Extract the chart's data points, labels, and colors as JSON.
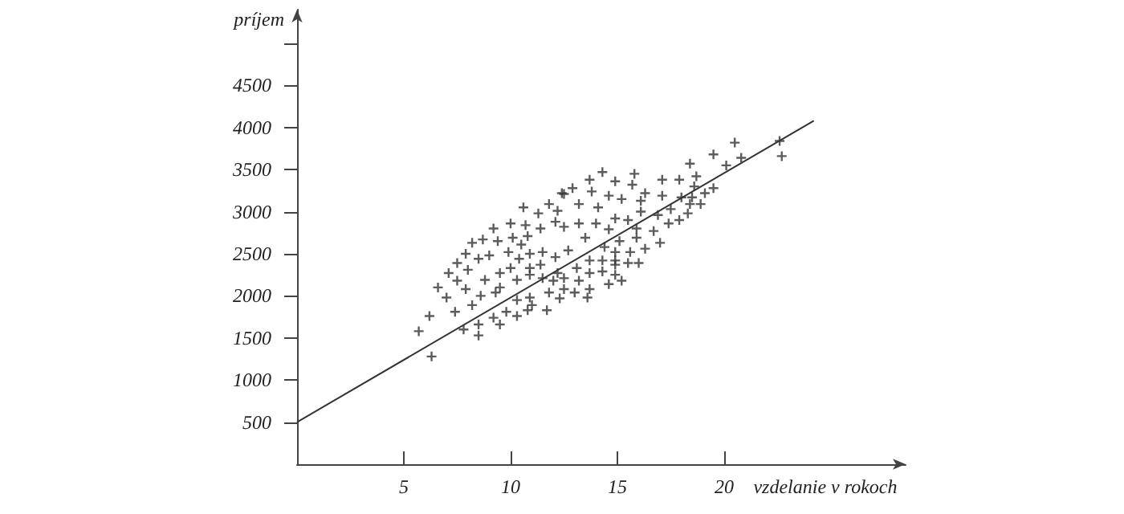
{
  "chart_data": {
    "type": "scatter",
    "xlabel": "vzdelanie v rokoch",
    "ylabel": "príjem",
    "xlim": [
      0,
      28.5
    ],
    "ylim": [
      0,
      5400
    ],
    "xticks": [
      5,
      10,
      15,
      20
    ],
    "yticks": [
      500,
      1000,
      1500,
      2000,
      2500,
      3000,
      3500,
      4000,
      4500,
      {
        "value": 5000,
        "label": null
      }
    ],
    "grid": false,
    "marker": "cross",
    "series": [
      {
        "color": "#333333",
        "x": [
          10.6,
          11.3,
          11.8,
          12.4,
          12.9,
          12.2,
          10.7,
          11.4,
          12.1,
          12.5,
          10.0,
          9.2,
          8.7,
          8.2,
          9.4,
          10.1,
          10.8,
          10.5,
          9.9,
          9.0,
          8.5,
          7.9,
          7.5,
          7.1,
          7.5,
          8.0,
          8.8,
          9.5,
          10.0,
          10.4,
          10.9,
          11.5,
          10.9,
          11.4,
          12.1,
          12.7,
          6.6,
          7.0,
          7.9,
          8.6,
          9.3,
          9.5,
          10.3,
          10.9,
          11.5,
          12.2,
          12.5,
          12.0,
          12.5,
          13.0,
          11.8,
          12.3,
          10.9,
          10.3,
          9.8,
          10.3,
          9.2,
          9.5,
          8.2,
          7.4,
          8.5,
          7.8,
          8.5,
          6.2,
          5.7,
          6.3,
          11.0,
          11.7,
          10.8,
          20.5,
          19.5,
          18.4,
          20.1,
          20.8,
          18.7,
          17.9,
          17.1,
          15.8,
          14.3,
          13.7,
          14.9,
          15.7,
          16.3,
          16.1,
          15.2,
          14.6,
          13.8,
          13.2,
          14.1,
          12.5,
          17.1,
          18.0,
          18.5,
          19.1,
          19.5,
          18.6,
          17.5,
          18.4,
          18.9,
          16.9,
          16.1,
          15.5,
          14.9,
          14.6,
          14.0,
          13.2,
          15.9,
          16.7,
          17.4,
          17.9,
          18.3,
          13.5,
          15.1,
          15.9,
          17.0,
          16.3,
          14.4,
          14.9,
          15.6,
          13.7,
          14.3,
          14.9,
          13.1,
          13.7,
          14.3,
          14.9,
          15.5,
          16.0,
          14.9,
          13.2,
          14.6,
          15.2,
          13.6,
          13.7,
          22.6,
          22.7
        ],
        "values": [
          3050,
          2980,
          3090,
          3220,
          3280,
          3010,
          2840,
          2800,
          2880,
          2820,
          2860,
          2800,
          2670,
          2630,
          2650,
          2690,
          2710,
          2610,
          2520,
          2480,
          2440,
          2500,
          2390,
          2270,
          2180,
          2310,
          2190,
          2270,
          2330,
          2440,
          2500,
          2520,
          2330,
          2370,
          2460,
          2540,
          2100,
          1980,
          2080,
          2000,
          2040,
          2100,
          2190,
          2250,
          2210,
          2270,
          2210,
          2180,
          2080,
          2040,
          2040,
          1970,
          1980,
          1950,
          1810,
          1760,
          1740,
          1660,
          1890,
          1810,
          1660,
          1600,
          1530,
          1760,
          1580,
          1280,
          1890,
          1830,
          1830,
          3820,
          3680,
          3570,
          3550,
          3640,
          3420,
          3380,
          3380,
          3450,
          3470,
          3380,
          3360,
          3320,
          3220,
          3130,
          3150,
          3190,
          3240,
          3090,
          3050,
          3210,
          3190,
          3170,
          3170,
          3220,
          3280,
          3300,
          3030,
          3090,
          3090,
          2960,
          3000,
          2900,
          2920,
          2790,
          2860,
          2860,
          2800,
          2770,
          2860,
          2900,
          2980,
          2690,
          2650,
          2690,
          2630,
          2560,
          2580,
          2520,
          2520,
          2420,
          2420,
          2420,
          2330,
          2270,
          2290,
          2370,
          2390,
          2390,
          2250,
          2180,
          2140,
          2180,
          1980,
          2080,
          3840,
          3660
        ]
      },
      {
        "type": "line",
        "color": "#333333",
        "line_style": "solid",
        "marker": "none",
        "x": [
          0,
          24.2
        ],
        "values": [
          500,
          4080
        ]
      }
    ]
  }
}
